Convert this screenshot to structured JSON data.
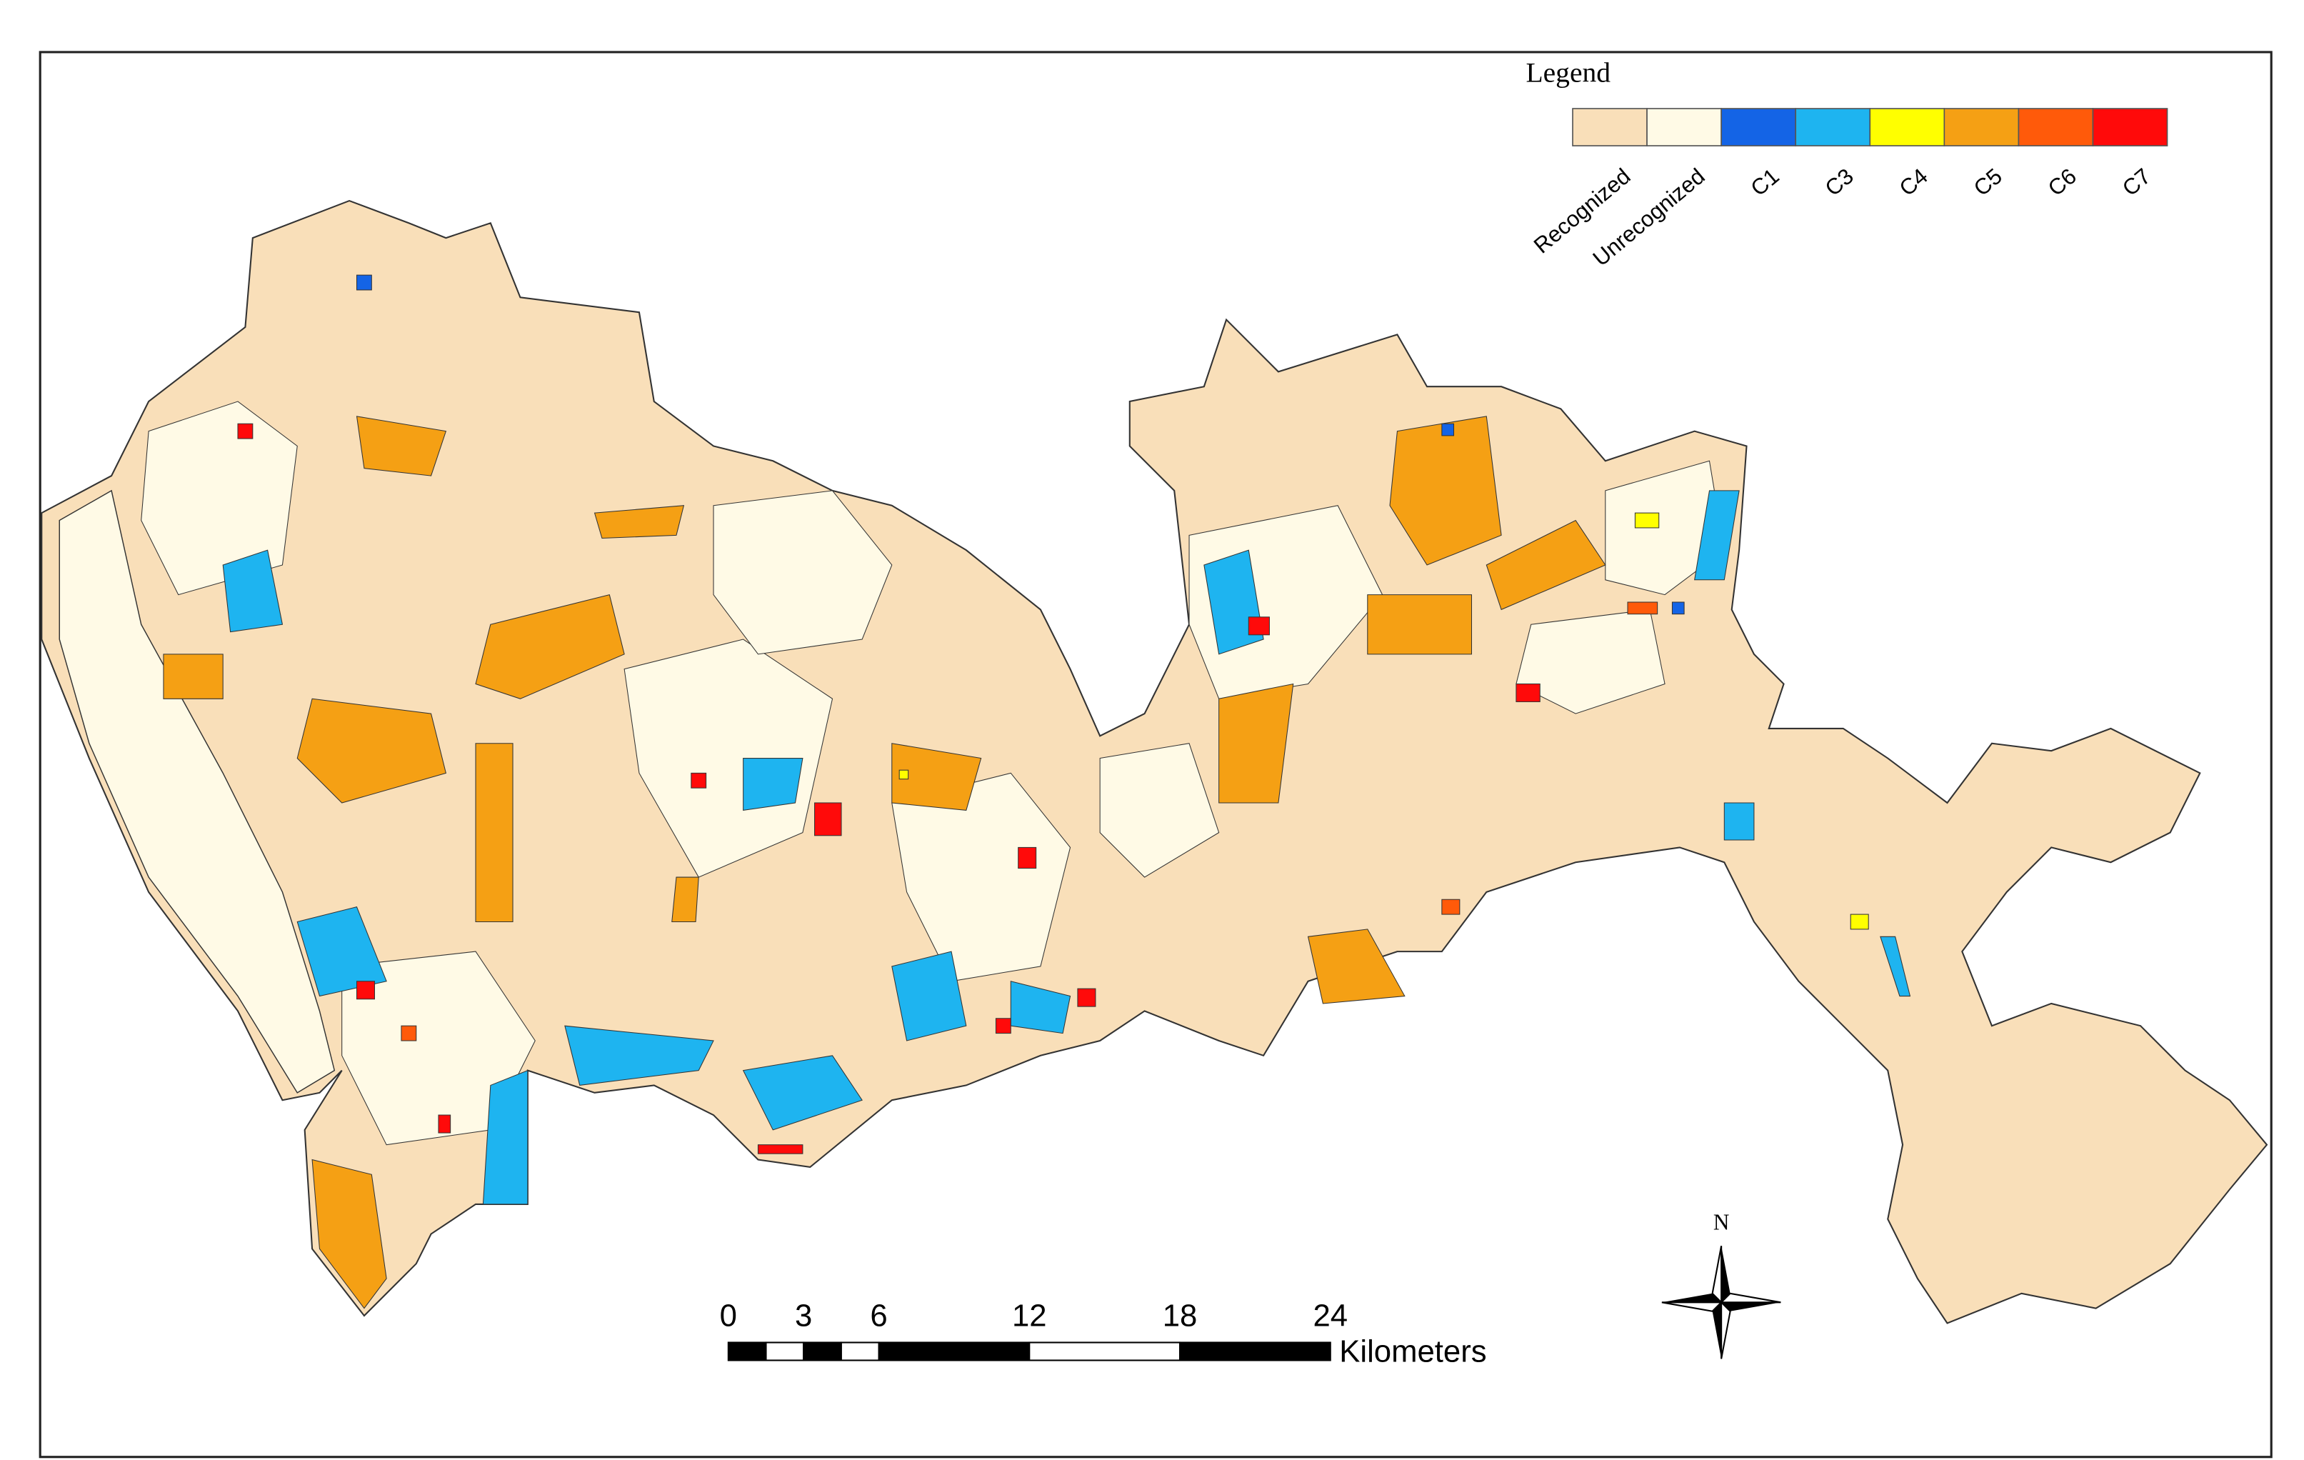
{
  "legend": {
    "title": "Legend",
    "items": [
      {
        "label": "Recognized",
        "color": "#f9dfb9"
      },
      {
        "label": "Unrecognized",
        "color": "#fffae6"
      },
      {
        "label": "C1",
        "color": "#1464e6"
      },
      {
        "label": "C3",
        "color": "#1eb4f0"
      },
      {
        "label": "C4",
        "color": "#ffff00"
      },
      {
        "label": "C5",
        "color": "#f5a014"
      },
      {
        "label": "C6",
        "color": "#ff5a0a"
      },
      {
        "label": "C7",
        "color": "#ff0a0a"
      }
    ]
  },
  "scale_bar": {
    "ticks": [
      0,
      3,
      6,
      12,
      18,
      24
    ],
    "unit": "Kilometers"
  },
  "north_arrow": {
    "label": "N"
  }
}
